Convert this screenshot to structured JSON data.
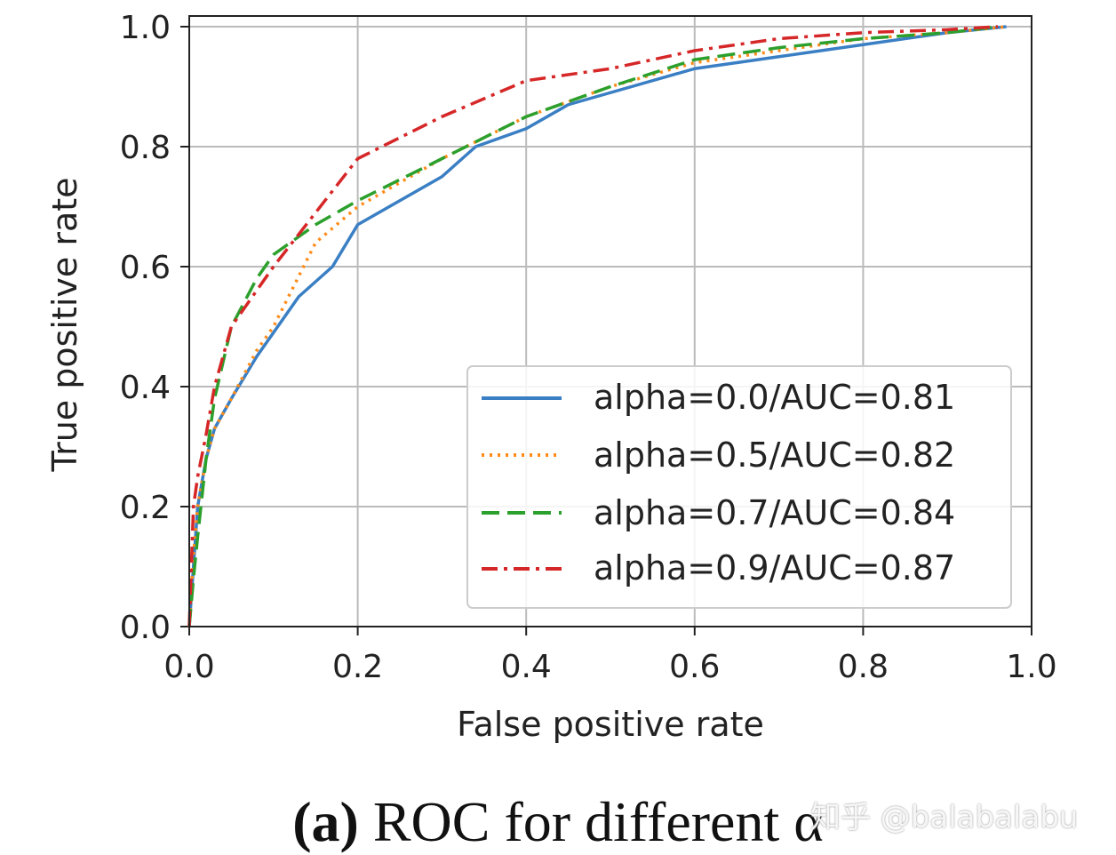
{
  "chart_data": {
    "type": "line",
    "title": "",
    "xlabel": "False positive rate",
    "ylabel": "True positive rate",
    "xlim": [
      0,
      1
    ],
    "ylim": [
      0,
      1
    ],
    "xticks": [
      "0.0",
      "0.2",
      "0.4",
      "0.6",
      "0.8",
      "1.0"
    ],
    "yticks": [
      "0.0",
      "0.2",
      "0.4",
      "0.6",
      "0.8",
      "1.0"
    ],
    "grid": true,
    "legend_position": "bottom-right",
    "series": [
      {
        "name": "alpha=0.0/AUC=0.81",
        "color": "#3a7fc4",
        "style": "solid",
        "x": [
          0,
          0.005,
          0.01,
          0.02,
          0.03,
          0.05,
          0.08,
          0.1,
          0.13,
          0.17,
          0.2,
          0.25,
          0.3,
          0.34,
          0.4,
          0.45,
          0.5,
          0.6,
          0.7,
          0.8,
          0.9,
          0.97
        ],
        "y": [
          0,
          0.1,
          0.2,
          0.28,
          0.33,
          0.38,
          0.45,
          0.49,
          0.55,
          0.6,
          0.67,
          0.71,
          0.75,
          0.8,
          0.83,
          0.87,
          0.89,
          0.93,
          0.95,
          0.97,
          0.99,
          1.0
        ]
      },
      {
        "name": "alpha=0.5/AUC=0.82",
        "color": "#ff8c1a",
        "style": "dotted",
        "x": [
          0,
          0.005,
          0.01,
          0.02,
          0.03,
          0.05,
          0.08,
          0.1,
          0.15,
          0.2,
          0.3,
          0.4,
          0.5,
          0.6,
          0.7,
          0.8,
          0.9,
          0.97
        ],
        "y": [
          0,
          0.12,
          0.2,
          0.28,
          0.33,
          0.38,
          0.46,
          0.5,
          0.64,
          0.7,
          0.78,
          0.85,
          0.9,
          0.94,
          0.96,
          0.98,
          0.99,
          1.0
        ]
      },
      {
        "name": "alpha=0.7/AUC=0.84",
        "color": "#2ca02c",
        "style": "dashed",
        "x": [
          0,
          0.005,
          0.01,
          0.02,
          0.03,
          0.05,
          0.08,
          0.1,
          0.15,
          0.2,
          0.3,
          0.4,
          0.5,
          0.6,
          0.7,
          0.8,
          0.9,
          0.96
        ],
        "y": [
          0,
          0.08,
          0.15,
          0.28,
          0.38,
          0.5,
          0.58,
          0.62,
          0.67,
          0.71,
          0.78,
          0.85,
          0.9,
          0.945,
          0.965,
          0.98,
          0.99,
          1.0
        ]
      },
      {
        "name": "alpha=0.9/AUC=0.87",
        "color": "#d62728",
        "style": "dashdot",
        "x": [
          0,
          0.005,
          0.01,
          0.02,
          0.03,
          0.05,
          0.08,
          0.1,
          0.15,
          0.2,
          0.3,
          0.4,
          0.5,
          0.6,
          0.7,
          0.8,
          0.9,
          0.96
        ],
        "y": [
          0,
          0.2,
          0.25,
          0.32,
          0.4,
          0.5,
          0.56,
          0.6,
          0.69,
          0.78,
          0.85,
          0.91,
          0.93,
          0.96,
          0.98,
          0.99,
          0.995,
          1.0
        ]
      }
    ]
  },
  "caption": {
    "label": "(a)",
    "text": " ROC for different α"
  },
  "watermark": "知乎 @balabalabu"
}
